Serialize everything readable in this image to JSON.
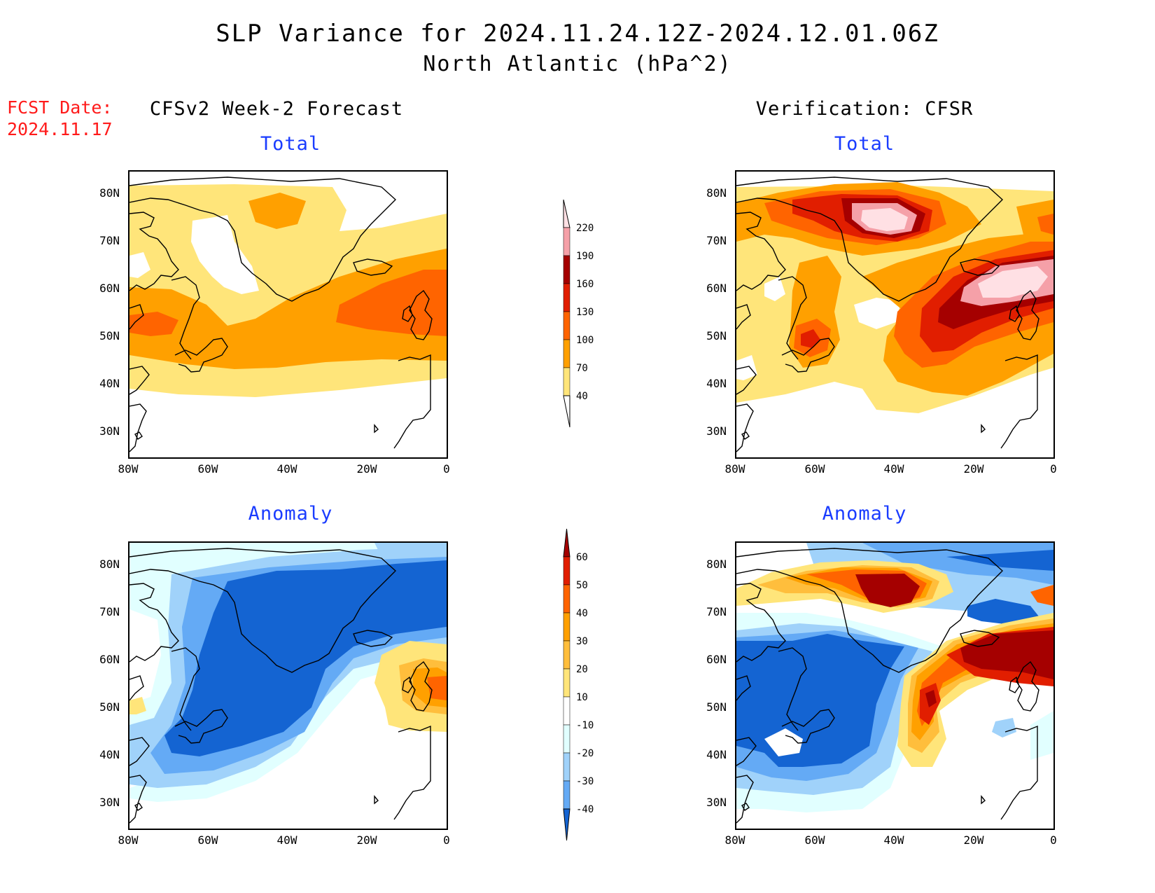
{
  "header": {
    "title": "SLP Variance for 2024.11.24.12Z-2024.12.01.06Z",
    "subtitle": "North Atlantic (hPa^2)",
    "fcst_date_label": "FCST Date:",
    "fcst_date_value": "2024.11.17"
  },
  "columns": {
    "left_title": "CFSv2 Week-2 Forecast",
    "right_title": "Verification: CFSR"
  },
  "panels": {
    "top_left_title": "Total",
    "top_right_title": "Total",
    "bottom_left_title": "Anomaly",
    "bottom_right_title": "Anomaly"
  },
  "axes": {
    "lat_labels": [
      "80N",
      "70N",
      "60N",
      "50N",
      "40N",
      "30N"
    ],
    "lon_labels": [
      "80W",
      "60W",
      "40W",
      "20W",
      "0"
    ]
  },
  "colorbars": {
    "total": {
      "levels": [
        "40",
        "70",
        "100",
        "130",
        "160",
        "190",
        "220"
      ],
      "colors": [
        "#ffffff",
        "#ffe57a",
        "#ffa000",
        "#ff6400",
        "#e11e00",
        "#a50000",
        "#f5a0a8",
        "#ffe0e4"
      ]
    },
    "anomaly": {
      "levels": [
        "-40",
        "-30",
        "-20",
        "-10",
        "10",
        "20",
        "30",
        "40",
        "50",
        "60"
      ],
      "colors": [
        "#1464d2",
        "#64aaf5",
        "#a0d2fa",
        "#e1ffff",
        "#ffffff",
        "#ffe57a",
        "#ffbe3c",
        "#ffa000",
        "#ff6400",
        "#e11e00",
        "#a50000"
      ]
    }
  },
  "icons": {
    "coastline": "coastline-icon"
  }
}
